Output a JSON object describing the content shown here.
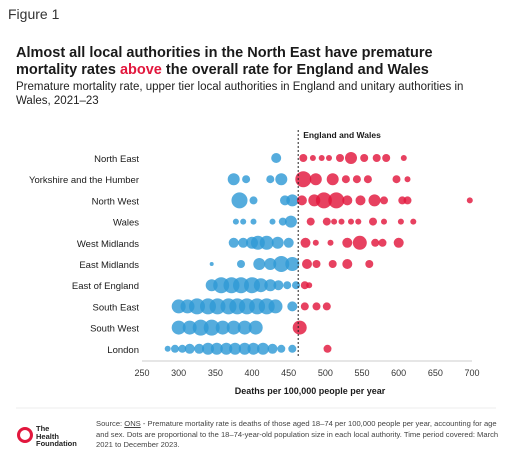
{
  "figure_label": "Figure 1",
  "title_parts": {
    "pre": "Almost all local authorities in the North East have premature mortality rates ",
    "highlight": "above",
    "post": " the overall rate for England and Wales"
  },
  "subtitle": "Premature mortality rate, upper tier local authorities in England and unitary authorities in Wales, 2021–23",
  "footer": {
    "logo_text": [
      "The",
      "Health",
      "Foundation"
    ],
    "source_prefix": "Source: ",
    "source_link": "ONS",
    "source_text": " - Premature mortality rate is deaths of those aged 18–74 per 100,000 people per year, accounting for age and sex. Dots are proportional to the 18–74-year-old population size in each local authority. Time period covered: March 2021 to December 2023."
  },
  "colors": {
    "below": "#2f9ad6",
    "above": "#e2173d",
    "text": "#1a1a1a",
    "axis": "#888888"
  },
  "chart_data": {
    "type": "scatter",
    "xlabel": "Deaths per 100,000 people per year",
    "xlim": [
      250,
      700
    ],
    "xticks": [
      250,
      300,
      350,
      400,
      450,
      500,
      550,
      600,
      650,
      700
    ],
    "reference": {
      "label": "England and Wales",
      "value": 463
    },
    "categories": [
      "North East",
      "Yorkshire and the Humber",
      "North West",
      "Wales",
      "West Midlands",
      "East Midlands",
      "East of England",
      "South East",
      "South West",
      "London"
    ],
    "series": [
      {
        "category": "North East",
        "points": [
          [
            433,
            5
          ],
          [
            470,
            4
          ],
          [
            483,
            3
          ],
          [
            495,
            3
          ],
          [
            505,
            3
          ],
          [
            520,
            4
          ],
          [
            535,
            6
          ],
          [
            553,
            4
          ],
          [
            570,
            4
          ],
          [
            583,
            4
          ],
          [
            607,
            3
          ]
        ]
      },
      {
        "category": "Yorkshire and the Humber",
        "points": [
          [
            375,
            6
          ],
          [
            392,
            4
          ],
          [
            425,
            4
          ],
          [
            440,
            6
          ],
          [
            470,
            8
          ],
          [
            487,
            6
          ],
          [
            510,
            6
          ],
          [
            528,
            4
          ],
          [
            543,
            4
          ],
          [
            558,
            4
          ],
          [
            597,
            4
          ],
          [
            612,
            3
          ]
        ]
      },
      {
        "category": "North West",
        "points": [
          [
            383,
            8
          ],
          [
            402,
            4
          ],
          [
            445,
            5
          ],
          [
            455,
            6
          ],
          [
            468,
            5
          ],
          [
            485,
            6
          ],
          [
            498,
            8
          ],
          [
            515,
            8
          ],
          [
            530,
            5
          ],
          [
            548,
            5
          ],
          [
            567,
            6
          ],
          [
            580,
            4
          ],
          [
            605,
            4
          ],
          [
            612,
            4
          ],
          [
            697,
            3
          ]
        ]
      },
      {
        "category": "Wales",
        "points": [
          [
            378,
            3
          ],
          [
            388,
            3
          ],
          [
            402,
            3
          ],
          [
            428,
            3
          ],
          [
            442,
            4
          ],
          [
            453,
            6
          ],
          [
            480,
            4
          ],
          [
            502,
            4
          ],
          [
            512,
            3
          ],
          [
            522,
            3
          ],
          [
            535,
            3
          ],
          [
            545,
            3
          ],
          [
            565,
            4
          ],
          [
            580,
            3
          ],
          [
            603,
            3
          ],
          [
            620,
            3
          ]
        ]
      },
      {
        "category": "West Midlands",
        "points": [
          [
            375,
            5
          ],
          [
            388,
            5
          ],
          [
            400,
            6
          ],
          [
            408,
            7
          ],
          [
            420,
            7
          ],
          [
            435,
            6
          ],
          [
            450,
            5
          ],
          [
            473,
            5
          ],
          [
            487,
            3
          ],
          [
            507,
            3
          ],
          [
            530,
            5
          ],
          [
            547,
            7
          ],
          [
            568,
            4
          ],
          [
            578,
            4
          ],
          [
            600,
            5
          ]
        ]
      },
      {
        "category": "East Midlands",
        "points": [
          [
            345,
            2
          ],
          [
            385,
            4
          ],
          [
            410,
            6
          ],
          [
            425,
            6
          ],
          [
            440,
            8
          ],
          [
            455,
            7
          ],
          [
            475,
            5
          ],
          [
            488,
            4
          ],
          [
            510,
            4
          ],
          [
            530,
            5
          ],
          [
            560,
            4
          ]
        ]
      },
      {
        "category": "East of England",
        "points": [
          [
            345,
            6
          ],
          [
            358,
            8
          ],
          [
            372,
            8
          ],
          [
            385,
            8
          ],
          [
            400,
            8
          ],
          [
            412,
            7
          ],
          [
            425,
            6
          ],
          [
            436,
            5
          ],
          [
            448,
            4
          ],
          [
            460,
            4
          ],
          [
            472,
            4
          ],
          [
            478,
            3
          ]
        ]
      },
      {
        "category": "South East",
        "points": [
          [
            300,
            7
          ],
          [
            312,
            7
          ],
          [
            325,
            8
          ],
          [
            340,
            8
          ],
          [
            353,
            8
          ],
          [
            368,
            8
          ],
          [
            380,
            8
          ],
          [
            393,
            8
          ],
          [
            407,
            8
          ],
          [
            420,
            8
          ],
          [
            432,
            7
          ],
          [
            455,
            5
          ],
          [
            472,
            4
          ],
          [
            488,
            4
          ],
          [
            502,
            4
          ]
        ]
      },
      {
        "category": "South West",
        "points": [
          [
            300,
            7
          ],
          [
            315,
            7
          ],
          [
            330,
            8
          ],
          [
            345,
            8
          ],
          [
            360,
            7
          ],
          [
            375,
            7
          ],
          [
            390,
            7
          ],
          [
            405,
            7
          ],
          [
            465,
            7
          ]
        ]
      },
      {
        "category": "London",
        "points": [
          [
            285,
            3
          ],
          [
            295,
            4
          ],
          [
            305,
            4
          ],
          [
            315,
            5
          ],
          [
            328,
            5
          ],
          [
            340,
            6
          ],
          [
            352,
            6
          ],
          [
            365,
            6
          ],
          [
            377,
            6
          ],
          [
            390,
            6
          ],
          [
            402,
            6
          ],
          [
            415,
            6
          ],
          [
            428,
            5
          ],
          [
            440,
            4
          ],
          [
            455,
            4
          ],
          [
            503,
            4
          ]
        ]
      }
    ]
  }
}
